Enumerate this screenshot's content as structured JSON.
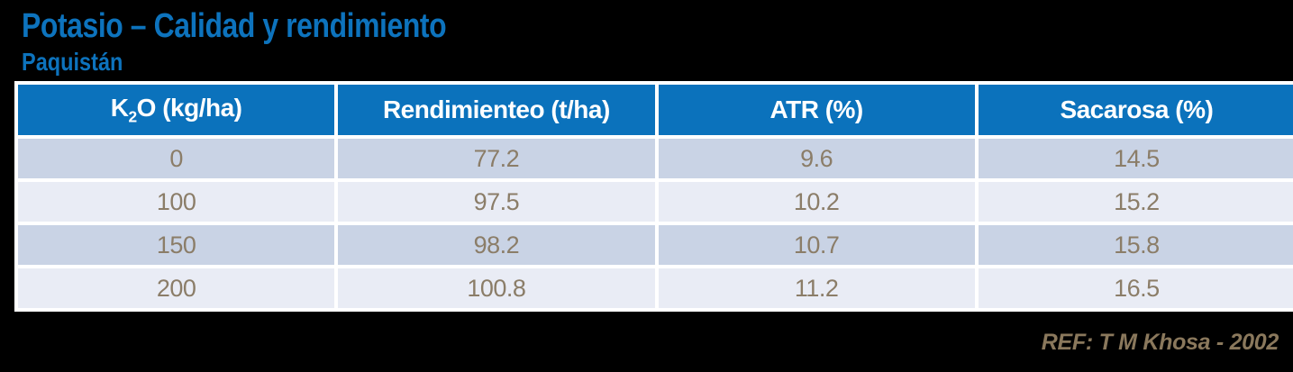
{
  "slide": {
    "title": "Potasio – Calidad y rendimiento",
    "subtitle": "Paquistán",
    "reference": "REF: T M Khosa - 2002"
  },
  "table": {
    "header": {
      "k2o": {
        "pre": "K",
        "sub": "2",
        "post": "O (kg/ha)"
      },
      "rendimiento": "Rendimienteo (t/ha)",
      "atr": "ATR (%)",
      "sacarosa": "Sacarosa (%)"
    }
  },
  "chart_data": {
    "type": "table",
    "title": "Potasio – Calidad y rendimiento",
    "subtitle": "Paquistán",
    "columns": [
      "K2O (kg/ha)",
      "Rendimienteo (t/ha)",
      "ATR (%)",
      "Sacarosa (%)"
    ],
    "rows": [
      [
        0,
        77.2,
        9.6,
        14.5
      ],
      [
        100,
        97.5,
        10.2,
        15.2
      ],
      [
        150,
        98.2,
        10.7,
        15.8
      ],
      [
        200,
        100.8,
        11.2,
        16.5
      ]
    ],
    "reference": "REF: T M Khosa - 2002"
  },
  "colors": {
    "background": "#000000",
    "title_text": "#0d73bd",
    "header_bg": "#0b72bc",
    "header_text": "#ffffff",
    "row_dark_bg": "#c9d3e5",
    "row_light_bg": "#e9ecf5",
    "data_text": "#8b7d68",
    "reference_text": "#8a785c",
    "cell_separator": "#ffffff"
  }
}
